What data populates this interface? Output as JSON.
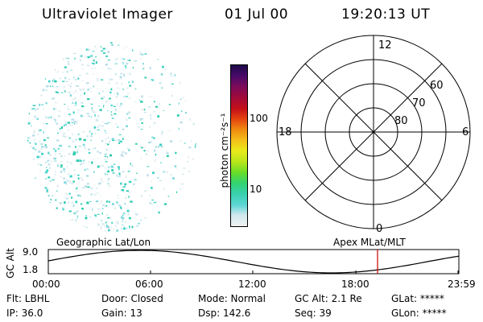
{
  "header": {
    "title": "Ultraviolet Imager",
    "date": "01 Jul 00",
    "time": "19:20:13 UT"
  },
  "colorbar": {
    "unit_label": "photon cm⁻²s⁻¹",
    "ticks": [
      "100",
      "10"
    ],
    "colors": [
      "#f2f2f2",
      "#cfe8ee",
      "#5fd6d6",
      "#39d0b0",
      "#33d36e",
      "#66dd2a",
      "#b8e61a",
      "#eaea1a",
      "#f4c21a",
      "#f08a10",
      "#e34010",
      "#c4101a",
      "#a00a3a",
      "#7a0a5a",
      "#4a0a6a",
      "#1e0a4a"
    ]
  },
  "polar": {
    "hour_labels": [
      "12",
      "18",
      "6",
      "0"
    ],
    "lat_labels": [
      "60",
      "70",
      "80"
    ]
  },
  "timeline": {
    "left_label": "Geographic Lat/Lon",
    "right_label": "Apex MLat/MLT",
    "axis_title": "GC Alt",
    "y_ticks": [
      "9.0",
      "1.8"
    ],
    "x_ticks": [
      "00:00",
      "06:00",
      "12:00",
      "18:00",
      "23:59"
    ],
    "marker_color": "#cc0000"
  },
  "footer": {
    "flt": "Flt: LBHL",
    "ip": "IP: 36.0",
    "door": "Door: Closed",
    "gain": "Gain: 13",
    "mode": "Mode: Normal",
    "dsp": "Dsp: 142.6",
    "gcalt": "GC Alt: 2.1 Re",
    "seq": "Seq: 39",
    "glat": "GLat: *****",
    "glon": "GLon: *****"
  }
}
